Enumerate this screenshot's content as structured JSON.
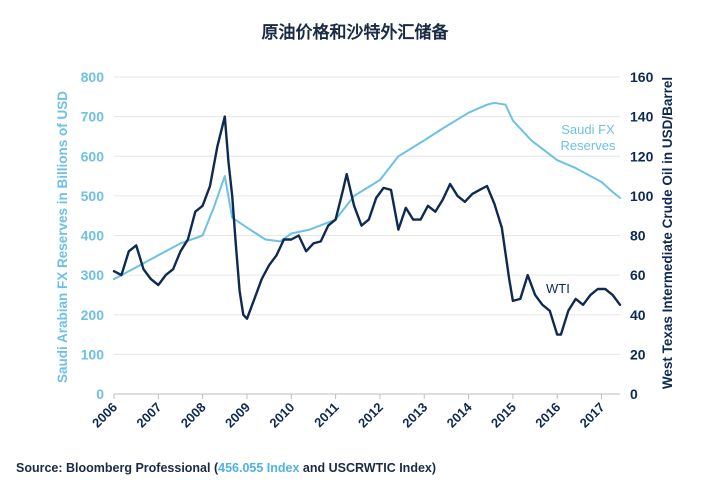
{
  "chart_data": {
    "type": "line",
    "title": "原油价格和沙特外汇储备",
    "x_ticks": [
      "2006",
      "2007",
      "2008",
      "2009",
      "2010",
      "2011",
      "2012",
      "2013",
      "2014",
      "2015",
      "2016",
      "2017"
    ],
    "x_range": [
      "2006-01",
      "2017-06"
    ],
    "left_axis": {
      "label": "Saudi Arabian FX Reserves in Billions of USD",
      "ticks": [
        0,
        100,
        200,
        300,
        400,
        500,
        600,
        700,
        800
      ],
      "range": [
        0,
        800
      ]
    },
    "right_axis": {
      "label": "West Texas Intermediate Crude Oil in USD/Barrel",
      "ticks": [
        0,
        20,
        40,
        60,
        80,
        100,
        120,
        140,
        160
      ],
      "range": [
        0,
        160
      ]
    },
    "grid": true,
    "series": [
      {
        "name": "Saudi FX Reserves",
        "label_lines": [
          "Saudi FX",
          "Reserves"
        ],
        "axis": "left",
        "color": "#6ec0e6",
        "x": [
          "2006-01",
          "2006-07",
          "2007-01",
          "2007-07",
          "2008-01",
          "2008-04",
          "2008-07",
          "2008-09",
          "2009-01",
          "2009-06",
          "2009-10",
          "2010-01",
          "2010-06",
          "2011-01",
          "2011-06",
          "2012-01",
          "2012-06",
          "2013-01",
          "2013-06",
          "2014-01",
          "2014-06",
          "2014-08",
          "2014-11",
          "2015-01",
          "2015-06",
          "2016-01",
          "2016-06",
          "2017-01",
          "2017-04",
          "2017-06"
        ],
        "values": [
          290,
          320,
          350,
          380,
          400,
          470,
          550,
          445,
          420,
          390,
          385,
          405,
          415,
          440,
          500,
          540,
          600,
          640,
          670,
          710,
          730,
          735,
          730,
          690,
          640,
          590,
          570,
          535,
          510,
          495
        ]
      },
      {
        "name": "WTI",
        "label_lines": [
          "WTI"
        ],
        "axis": "right",
        "color": "#0d2a52",
        "x": [
          "2006-01",
          "2006-03",
          "2006-05",
          "2006-07",
          "2006-09",
          "2006-11",
          "2007-01",
          "2007-03",
          "2007-05",
          "2007-07",
          "2007-09",
          "2007-11",
          "2008-01",
          "2008-03",
          "2008-05",
          "2008-07",
          "2008-08",
          "2008-09",
          "2008-10",
          "2008-11",
          "2008-12",
          "2009-01",
          "2009-03",
          "2009-05",
          "2009-07",
          "2009-09",
          "2009-11",
          "2010-01",
          "2010-03",
          "2010-05",
          "2010-07",
          "2010-09",
          "2010-11",
          "2011-01",
          "2011-03",
          "2011-04",
          "2011-06",
          "2011-08",
          "2011-10",
          "2011-12",
          "2012-02",
          "2012-04",
          "2012-06",
          "2012-08",
          "2012-10",
          "2012-12",
          "2013-02",
          "2013-04",
          "2013-06",
          "2013-08",
          "2013-10",
          "2013-12",
          "2014-02",
          "2014-04",
          "2014-06",
          "2014-08",
          "2014-10",
          "2014-12",
          "2015-01",
          "2015-03",
          "2015-05",
          "2015-07",
          "2015-09",
          "2015-11",
          "2016-01",
          "2016-02",
          "2016-04",
          "2016-06",
          "2016-08",
          "2016-10",
          "2016-12",
          "2017-02",
          "2017-04",
          "2017-06"
        ],
        "values": [
          62,
          60,
          72,
          75,
          63,
          58,
          55,
          60,
          63,
          72,
          78,
          92,
          95,
          105,
          125,
          140,
          117,
          100,
          75,
          52,
          40,
          38,
          48,
          58,
          65,
          70,
          78,
          78,
          80,
          72,
          76,
          77,
          85,
          88,
          103,
          111,
          95,
          85,
          88,
          99,
          104,
          103,
          83,
          94,
          88,
          88,
          95,
          92,
          98,
          106,
          100,
          97,
          101,
          103,
          105,
          96,
          84,
          58,
          47,
          48,
          60,
          50,
          45,
          42,
          30,
          30,
          42,
          48,
          45,
          50,
          53,
          53,
          50,
          45
        ]
      }
    ],
    "source_prefix": "Source: Bloomberg Professional (",
    "source_index_1": "456.055 Index",
    "source_middle": " and USCRWTIC Index)"
  }
}
